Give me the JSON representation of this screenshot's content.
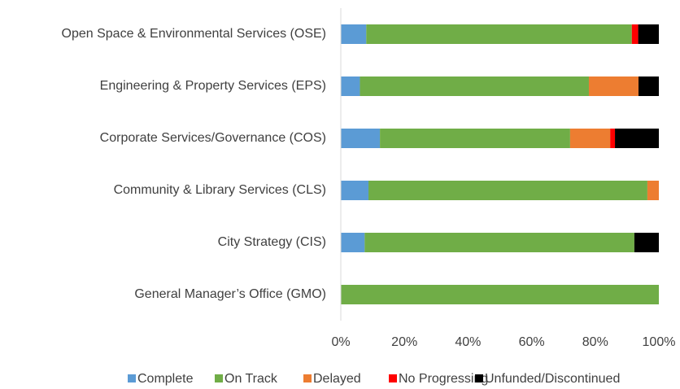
{
  "chart_data": {
    "type": "stacked-barh",
    "categories": [
      "Open Space & Environmental Services (OSE)",
      "Engineering & Property Services (EPS)",
      "Corporate Services/Governance (COS)",
      "Community & Library Services (CLS)",
      "City Strategy (CIS)",
      "General Manager’s Office (GMO)"
    ],
    "series": [
      {
        "name": "Complete",
        "color": "#5b9bd5",
        "values": [
          8,
          6,
          12.3,
          8.7,
          7.5,
          0
        ]
      },
      {
        "name": "On Track",
        "color": "#70ad47",
        "values": [
          83.5,
          72,
          59.8,
          87.7,
          84.8,
          100
        ]
      },
      {
        "name": "Delayed",
        "color": "#ed7d31",
        "values": [
          0,
          15.6,
          12.6,
          3.6,
          0,
          0
        ]
      },
      {
        "name": "No Progressing",
        "color": "#ff0000",
        "values": [
          2,
          0,
          1.5,
          0,
          0,
          0
        ]
      },
      {
        "name": "Unfunded/Discontinued",
        "color": "#000000",
        "values": [
          6.5,
          6.4,
          13.8,
          0,
          7.7,
          0
        ]
      }
    ],
    "xlim": [
      0,
      100
    ],
    "xticks": [
      {
        "value": 0,
        "label": "0%"
      },
      {
        "value": 20,
        "label": "20%"
      },
      {
        "value": 40,
        "label": "40%"
      },
      {
        "value": 60,
        "label": "60%"
      },
      {
        "value": 80,
        "label": "80%"
      },
      {
        "value": 100,
        "label": "100%"
      }
    ],
    "grid": false,
    "legend": "bottom"
  }
}
